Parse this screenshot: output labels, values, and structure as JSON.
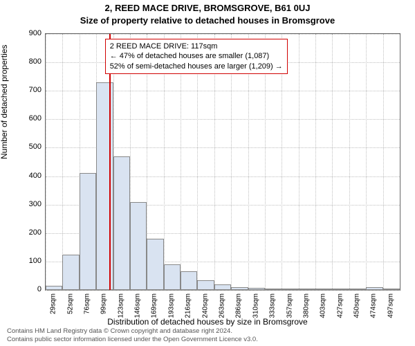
{
  "chart": {
    "type": "histogram",
    "title_line1": "2, REED MACE DRIVE, BROMSGROVE, B61 0UJ",
    "title_line2": "Size of property relative to detached houses in Bromsgrove",
    "title_fontsize": 13,
    "ylabel": "Number of detached properties",
    "xlabel": "Distribution of detached houses by size in Bromsgrove",
    "label_fontsize": 12,
    "tick_fontsize": 11,
    "background_color": "#ffffff",
    "grid_color": "#bfbfbf",
    "plot_border_color": "#666666",
    "bar_fill": "#d9e3f1",
    "bar_border": "#888888",
    "marker_color": "#d00000",
    "ylim": [
      0,
      900
    ],
    "yticks": [
      0,
      100,
      200,
      300,
      400,
      500,
      600,
      700,
      800,
      900
    ],
    "x_start": 29,
    "x_step": 23.4,
    "x_count": 21,
    "xtick_suffix": "sqm",
    "bars": [
      15,
      125,
      410,
      730,
      470,
      310,
      180,
      90,
      65,
      35,
      20,
      10,
      8,
      5,
      4,
      3,
      2,
      2,
      2,
      10,
      2
    ],
    "marker_x": 117,
    "annotation_text": "2 REED MACE DRIVE: 117sqm\n← 47% of detached houses are smaller (1,087)\n52% of semi-detached houses are larger (1,209) →",
    "annotation_border_color": "#d00000",
    "footer_line1": "Contains HM Land Registry data © Crown copyright and database right 2024.",
    "footer_line2": "Contains public sector information licensed under the Open Government Licence v3.0."
  }
}
